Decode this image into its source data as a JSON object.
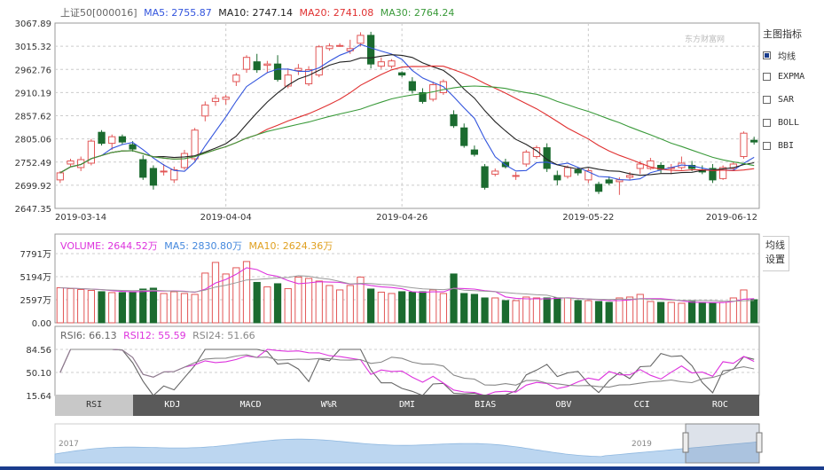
{
  "price_legend": {
    "name": "上证50[000016]",
    "ma5": "MA5: 2755.87",
    "ma10": "MA10: 2747.14",
    "ma20": "MA20: 2741.08",
    "ma30": "MA30: 2764.24"
  },
  "volume_legend": {
    "volume": "VOLUME: 2644.52万",
    "ma5": "MA5: 2830.80万",
    "ma10": "MA10: 2624.36万"
  },
  "rsi_legend": {
    "rsi6": "RSI6: 66.13",
    "rsi12": "RSI12: 55.59",
    "rsi24": "RSI24: 51.66"
  },
  "watermark": "东方财富网",
  "side_panel": {
    "title": "主图指标",
    "options": [
      {
        "label": "均线",
        "checked": true
      },
      {
        "label": "EXPMA",
        "checked": false
      },
      {
        "label": "SAR",
        "checked": false
      },
      {
        "label": "BOLL",
        "checked": false
      },
      {
        "label": "BBI",
        "checked": false
      }
    ]
  },
  "volume_settings": "均线\n设置",
  "volume_settings_lines": [
    "均线",
    "设置"
  ],
  "tabs": [
    {
      "label": "RSI",
      "active": true
    },
    {
      "label": "KDJ",
      "active": false
    },
    {
      "label": "MACD",
      "active": false
    },
    {
      "label": "W%R",
      "active": false
    },
    {
      "label": "DMI",
      "active": false
    },
    {
      "label": "BIAS",
      "active": false
    },
    {
      "label": "OBV",
      "active": false
    },
    {
      "label": "CCI",
      "active": false
    },
    {
      "label": "ROC",
      "active": false
    }
  ],
  "nav_years": [
    "2017",
    "2019"
  ],
  "colors": {
    "up": "#e25555",
    "down": "#1b6b2f",
    "ma5": "#3355dd",
    "ma10": "#222222",
    "ma20": "#e03030",
    "ma30": "#3a9a3a",
    "vol": "#dd33dd",
    "volma5": "#4488dd",
    "volma10": "#e0a020",
    "rsi6": "#666666",
    "rsi12": "#dd33dd",
    "rsi24": "#888888",
    "nav": "#bcd6f0"
  },
  "chart_data": [
    {
      "type": "candlestick",
      "title": "上证50[000016]",
      "y_ticks": [
        "3067.89",
        "3015.32",
        "2962.76",
        "2910.19",
        "2857.62",
        "2805.06",
        "2752.49",
        "2699.92",
        "2647.35"
      ],
      "ylim": [
        2647.35,
        3067.89
      ],
      "x_ticks": [
        "2019-03-14",
        "2019-04-04",
        "2019-04-26",
        "2019-05-22",
        "2019-06-12"
      ],
      "ohlc": [
        [
          2712,
          2732,
          2705,
          2728
        ],
        [
          2748,
          2760,
          2742,
          2755
        ],
        [
          2740,
          2765,
          2732,
          2758
        ],
        [
          2750,
          2805,
          2745,
          2800
        ],
        [
          2820,
          2825,
          2790,
          2795
        ],
        [
          2795,
          2815,
          2780,
          2810
        ],
        [
          2810,
          2815,
          2792,
          2798
        ],
        [
          2792,
          2800,
          2776,
          2782
        ],
        [
          2758,
          2768,
          2712,
          2718
        ],
        [
          2738,
          2745,
          2690,
          2700
        ],
        [
          2730,
          2748,
          2722,
          2732
        ],
        [
          2712,
          2742,
          2705,
          2735
        ],
        [
          2740,
          2780,
          2735,
          2772
        ],
        [
          2760,
          2830,
          2755,
          2825
        ],
        [
          2857,
          2890,
          2845,
          2882
        ],
        [
          2890,
          2905,
          2880,
          2897
        ],
        [
          2895,
          2905,
          2883,
          2900
        ],
        [
          2935,
          2955,
          2925,
          2950
        ],
        [
          2963,
          2995,
          2955,
          2990
        ],
        [
          2980,
          2998,
          2955,
          2962
        ],
        [
          2972,
          2982,
          2955,
          2975
        ],
        [
          2975,
          2995,
          2935,
          2940
        ],
        [
          2925,
          2965,
          2920,
          2950
        ],
        [
          2960,
          2975,
          2950,
          2965
        ],
        [
          2930,
          2970,
          2925,
          2962
        ],
        [
          2950,
          3018,
          2945,
          3014
        ],
        [
          3010,
          3022,
          3005,
          3016
        ],
        [
          3017,
          3022,
          3014,
          3017
        ],
        [
          3005,
          3030,
          2998,
          3010
        ],
        [
          3022,
          3047,
          3015,
          3040
        ],
        [
          3040,
          3048,
          2965,
          2975
        ],
        [
          2970,
          2990,
          2964,
          2980
        ],
        [
          2970,
          2986,
          2965,
          2982
        ],
        [
          2955,
          2958,
          2945,
          2950
        ],
        [
          2935,
          2945,
          2908,
          2915
        ],
        [
          2910,
          2920,
          2885,
          2890
        ],
        [
          2895,
          2935,
          2890,
          2928
        ],
        [
          2910,
          2940,
          2905,
          2935
        ],
        [
          2860,
          2870,
          2830,
          2835
        ],
        [
          2830,
          2840,
          2785,
          2790
        ],
        [
          2780,
          2790,
          2765,
          2770
        ],
        [
          2742,
          2748,
          2690,
          2695
        ],
        [
          2725,
          2738,
          2720,
          2732
        ],
        [
          2752,
          2760,
          2738,
          2742
        ],
        [
          2720,
          2730,
          2712,
          2722
        ],
        [
          2748,
          2780,
          2742,
          2775
        ],
        [
          2765,
          2790,
          2760,
          2785
        ],
        [
          2785,
          2795,
          2730,
          2738
        ],
        [
          2722,
          2733,
          2700,
          2712
        ],
        [
          2720,
          2745,
          2715,
          2740
        ],
        [
          2735,
          2740,
          2722,
          2728
        ],
        [
          2712,
          2738,
          2705,
          2733
        ],
        [
          2702,
          2708,
          2680,
          2686
        ],
        [
          2712,
          2720,
          2700,
          2705
        ],
        [
          2708,
          2718,
          2678,
          2712
        ],
        [
          2718,
          2730,
          2712,
          2722
        ],
        [
          2738,
          2755,
          2725,
          2748
        ],
        [
          2738,
          2762,
          2735,
          2755
        ],
        [
          2745,
          2752,
          2728,
          2736
        ],
        [
          2740,
          2748,
          2725,
          2740
        ],
        [
          2740,
          2765,
          2735,
          2750
        ],
        [
          2745,
          2755,
          2732,
          2738
        ],
        [
          2735,
          2745,
          2725,
          2730
        ],
        [
          2738,
          2748,
          2705,
          2712
        ],
        [
          2715,
          2745,
          2712,
          2740
        ],
        [
          2738,
          2752,
          2732,
          2748
        ],
        [
          2765,
          2822,
          2760,
          2818
        ],
        [
          2802,
          2810,
          2792,
          2798
        ]
      ]
    },
    {
      "type": "bar",
      "title": "VOLUME",
      "y_ticks": [
        "7791万",
        "5194万",
        "2597万",
        "0.00"
      ],
      "ylim": [
        0,
        7791
      ],
      "values": [
        3950,
        3850,
        3750,
        3650,
        3500,
        3400,
        3400,
        3500,
        3800,
        3900,
        3300,
        3500,
        3300,
        3200,
        5600,
        6800,
        5500,
        6200,
        6900,
        4550,
        4050,
        4400,
        3850,
        5150,
        5000,
        4700,
        4200,
        3700,
        4200,
        5150,
        3800,
        3450,
        3300,
        3500,
        3450,
        3500,
        3700,
        3300,
        5500,
        3300,
        3200,
        2800,
        2800,
        2500,
        2500,
        2900,
        2800,
        2800,
        2800,
        2800,
        2500,
        2500,
        2400,
        2300,
        2800,
        2900,
        3200,
        2400,
        2300,
        2300,
        2200,
        2400,
        2300,
        2200,
        2300,
        2800,
        3700,
        2600
      ]
    },
    {
      "type": "line",
      "title": "RSI",
      "y_ticks": [
        "84.56",
        "50.10",
        "15.64"
      ],
      "ylim": [
        15.64,
        84.56
      ]
    }
  ]
}
